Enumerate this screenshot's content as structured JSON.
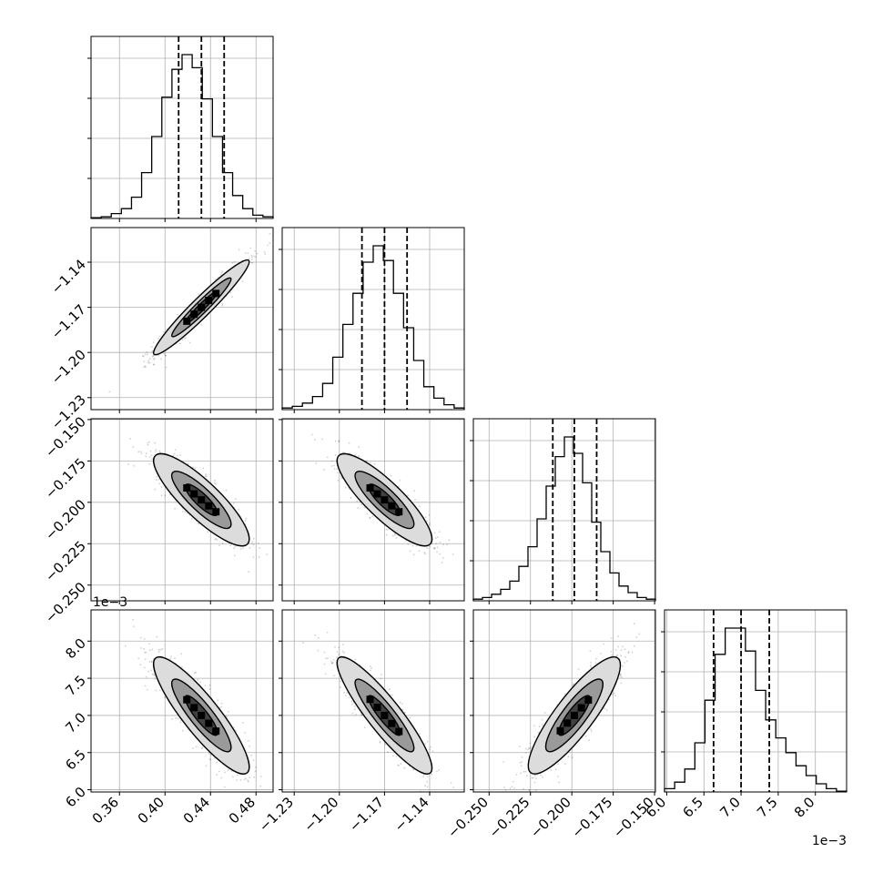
{
  "chart_data": {
    "type": "corner",
    "parameters": [
      {
        "ticks": [
          "0.36",
          "0.40",
          "0.44",
          "0.48"
        ],
        "range": [
          0.335,
          0.495
        ],
        "tick_values": [
          0.36,
          0.4,
          0.44,
          0.48
        ],
        "median": 0.432,
        "q16": 0.412,
        "q84": 0.452,
        "offset": ""
      },
      {
        "ticks": [
          "−1.23",
          "−1.20",
          "−1.17",
          "−1.14"
        ],
        "range": [
          -1.238,
          -1.117
        ],
        "tick_values": [
          -1.23,
          -1.2,
          -1.17,
          -1.14
        ],
        "median": -1.17,
        "q16": -1.185,
        "q84": -1.155,
        "offset": ""
      },
      {
        "ticks": [
          "−0.250",
          "−0.225",
          "−0.200",
          "−0.175",
          "−0.150"
        ],
        "range": [
          -0.2595,
          -0.1495
        ],
        "tick_values": [
          -0.25,
          -0.225,
          -0.2,
          -0.175,
          -0.15
        ],
        "median": -0.1985,
        "q16": -0.2115,
        "q84": -0.185,
        "offset": ""
      },
      {
        "ticks": [
          "6.0",
          "6.5",
          "7.0",
          "7.5",
          "8.0"
        ],
        "range": [
          5.97,
          8.42
        ],
        "tick_values": [
          6.0,
          6.5,
          7.0,
          7.5,
          8.0
        ],
        "median": 7.0,
        "q16": 6.63,
        "q84": 7.38,
        "offset": "1e−3"
      }
    ],
    "histograms": [
      [
        0.005,
        0.01,
        0.03,
        0.06,
        0.13,
        0.28,
        0.5,
        0.74,
        0.91,
        1.0,
        0.92,
        0.73,
        0.5,
        0.28,
        0.14,
        0.06,
        0.02,
        0.01
      ],
      [
        0.01,
        0.02,
        0.04,
        0.08,
        0.16,
        0.32,
        0.52,
        0.71,
        0.9,
        1.0,
        0.91,
        0.71,
        0.5,
        0.3,
        0.14,
        0.07,
        0.03,
        0.01
      ],
      [
        0.01,
        0.02,
        0.04,
        0.07,
        0.12,
        0.21,
        0.33,
        0.5,
        0.7,
        0.88,
        1.0,
        0.9,
        0.72,
        0.48,
        0.3,
        0.17,
        0.09,
        0.05,
        0.02,
        0.01
      ],
      [
        0.02,
        0.06,
        0.14,
        0.3,
        0.56,
        0.84,
        1.0,
        1.0,
        0.86,
        0.62,
        0.44,
        0.33,
        0.24,
        0.16,
        0.1,
        0.05,
        0.02,
        0.005
      ]
    ],
    "correlations": {
      "1-0": 0.96,
      "2-0": -0.85,
      "2-1": -0.85,
      "3-0": -0.88,
      "3-1": -0.9,
      "3-2": 0.86
    },
    "grid": true
  }
}
